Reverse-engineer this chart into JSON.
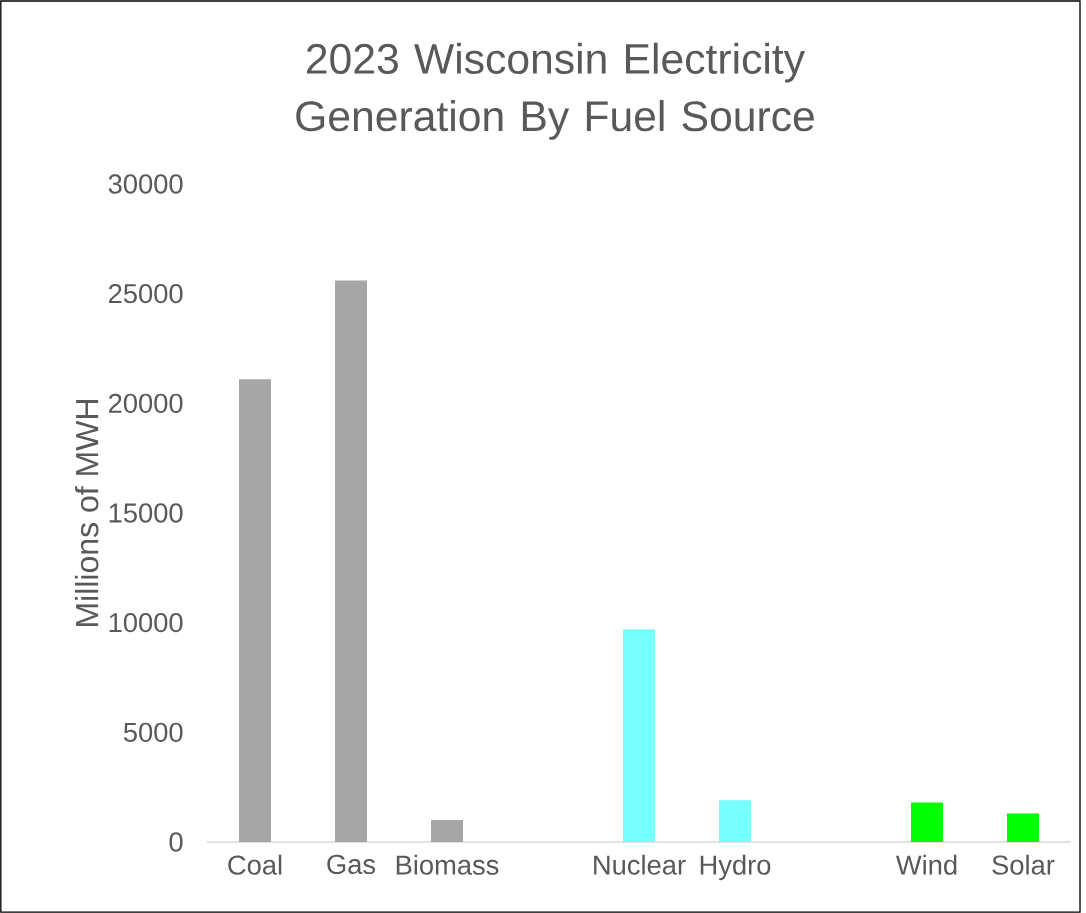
{
  "chart_data": {
    "type": "bar",
    "title": "2023 Wisconsin Electricity Generation By Fuel Source",
    "ylabel": "Millions of MWH",
    "categories": [
      "Coal",
      "Gas",
      "Biomass",
      null,
      "Nuclear",
      "Hydro",
      null,
      "Wind",
      "Solar"
    ],
    "values": [
      21100,
      25600,
      1000,
      null,
      9700,
      1900,
      null,
      1800,
      1300
    ],
    "colors": [
      "#a6a6a6",
      "#a6a6a6",
      "#a6a6a6",
      "#a6a6a6",
      "#77ffff",
      "#77ffff",
      "#77ffff",
      "#00ff00",
      "#00ff00"
    ],
    "ylim": [
      0,
      30000
    ],
    "yticks": [
      0,
      5000,
      10000,
      15000,
      20000,
      25000,
      30000
    ]
  }
}
